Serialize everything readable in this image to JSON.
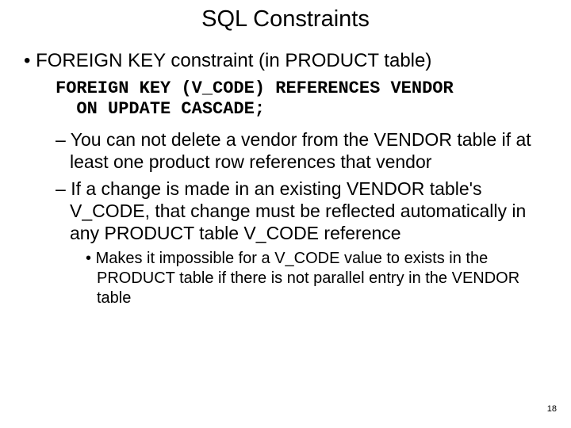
{
  "title": "SQL Constraints",
  "bullet1": "FOREIGN KEY constraint (in PRODUCT  table)",
  "code_line1": "FOREIGN KEY (V_CODE) REFERENCES VENDOR",
  "code_line2": "  ON UPDATE CASCADE;",
  "sub1": "You can not delete a vendor from the VENDOR table if at least one product row references that vendor",
  "sub2": "If a change is made in an existing VENDOR table's V_CODE, that change must be reflected automatically in any PRODUCT table V_CODE reference",
  "subsub1": "Makes it impossible for a V_CODE value to exists in the PRODUCT table if there is not parallel entry in the VENDOR table",
  "page_number": "18"
}
